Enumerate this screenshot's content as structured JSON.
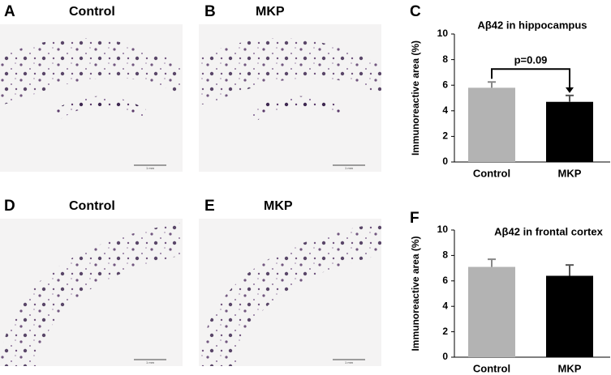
{
  "panels": [
    {
      "letter": "A",
      "title": "Control",
      "scale_label": "1 mm"
    },
    {
      "letter": "B",
      "title": "MKP",
      "scale_label": "1 mm"
    },
    {
      "letter": "D",
      "title": "Control",
      "scale_label": "1 mm"
    },
    {
      "letter": "E",
      "title": "MKP",
      "scale_label": "1 mm"
    }
  ],
  "chart_data": [
    {
      "letter": "C",
      "type": "bar",
      "title": "Aβ42 in hippocampus",
      "ylabel": "Immunoreactive area (%)",
      "categories": [
        "Control",
        "MKP"
      ],
      "values": [
        5.8,
        4.7
      ],
      "errors": [
        0.45,
        0.5
      ],
      "colors": [
        "#b3b3b3",
        "#000000"
      ],
      "ylim": [
        0,
        10
      ],
      "yticks": [
        0,
        2,
        4,
        6,
        8,
        10
      ],
      "annotation": "p=0.09"
    },
    {
      "letter": "F",
      "type": "bar",
      "title": "Aβ42 in frontal cortex",
      "ylabel": "Immunoreactive area (%)",
      "categories": [
        "Control",
        "MKP"
      ],
      "values": [
        7.1,
        6.4
      ],
      "errors": [
        0.6,
        0.85
      ],
      "colors": [
        "#b3b3b3",
        "#000000"
      ],
      "ylim": [
        0,
        10
      ],
      "yticks": [
        0,
        2,
        4,
        6,
        8,
        10
      ]
    }
  ]
}
